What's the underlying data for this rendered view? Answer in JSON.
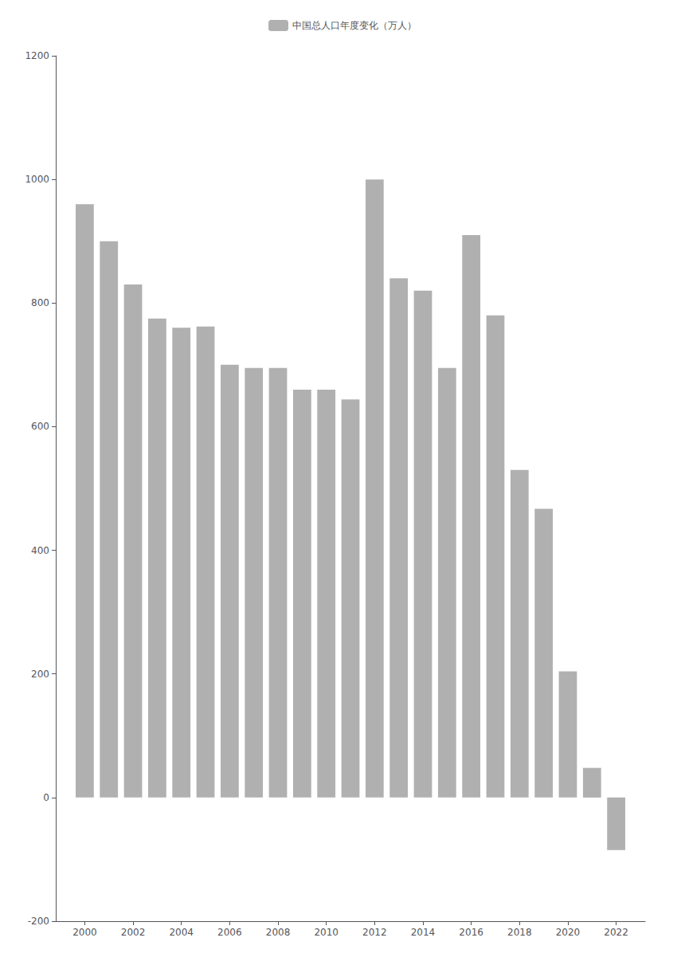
{
  "chart_data": {
    "type": "bar",
    "series": [
      {
        "name": "中国总人口年度变化（万人）",
        "color": "#b0b0b0",
        "values": [
          960,
          900,
          830,
          775,
          760,
          762,
          700,
          695,
          695,
          660,
          660,
          644,
          1000,
          840,
          820,
          695,
          910,
          780,
          530,
          467,
          204,
          48,
          -85
        ]
      }
    ],
    "x": [
      2000,
      2001,
      2002,
      2003,
      2004,
      2005,
      2006,
      2007,
      2008,
      2009,
      2010,
      2011,
      2012,
      2013,
      2014,
      2015,
      2016,
      2017,
      2018,
      2019,
      2020,
      2021,
      2022
    ],
    "xlim": [
      1998.8,
      2023.2
    ],
    "xticks": [
      2000,
      2002,
      2004,
      2006,
      2008,
      2010,
      2012,
      2014,
      2016,
      2018,
      2020,
      2022
    ],
    "ylim": [
      -200,
      1200
    ],
    "yticks": [
      -200,
      0,
      200,
      400,
      600,
      800,
      1000,
      1200
    ],
    "grid": false,
    "legend": "top"
  }
}
